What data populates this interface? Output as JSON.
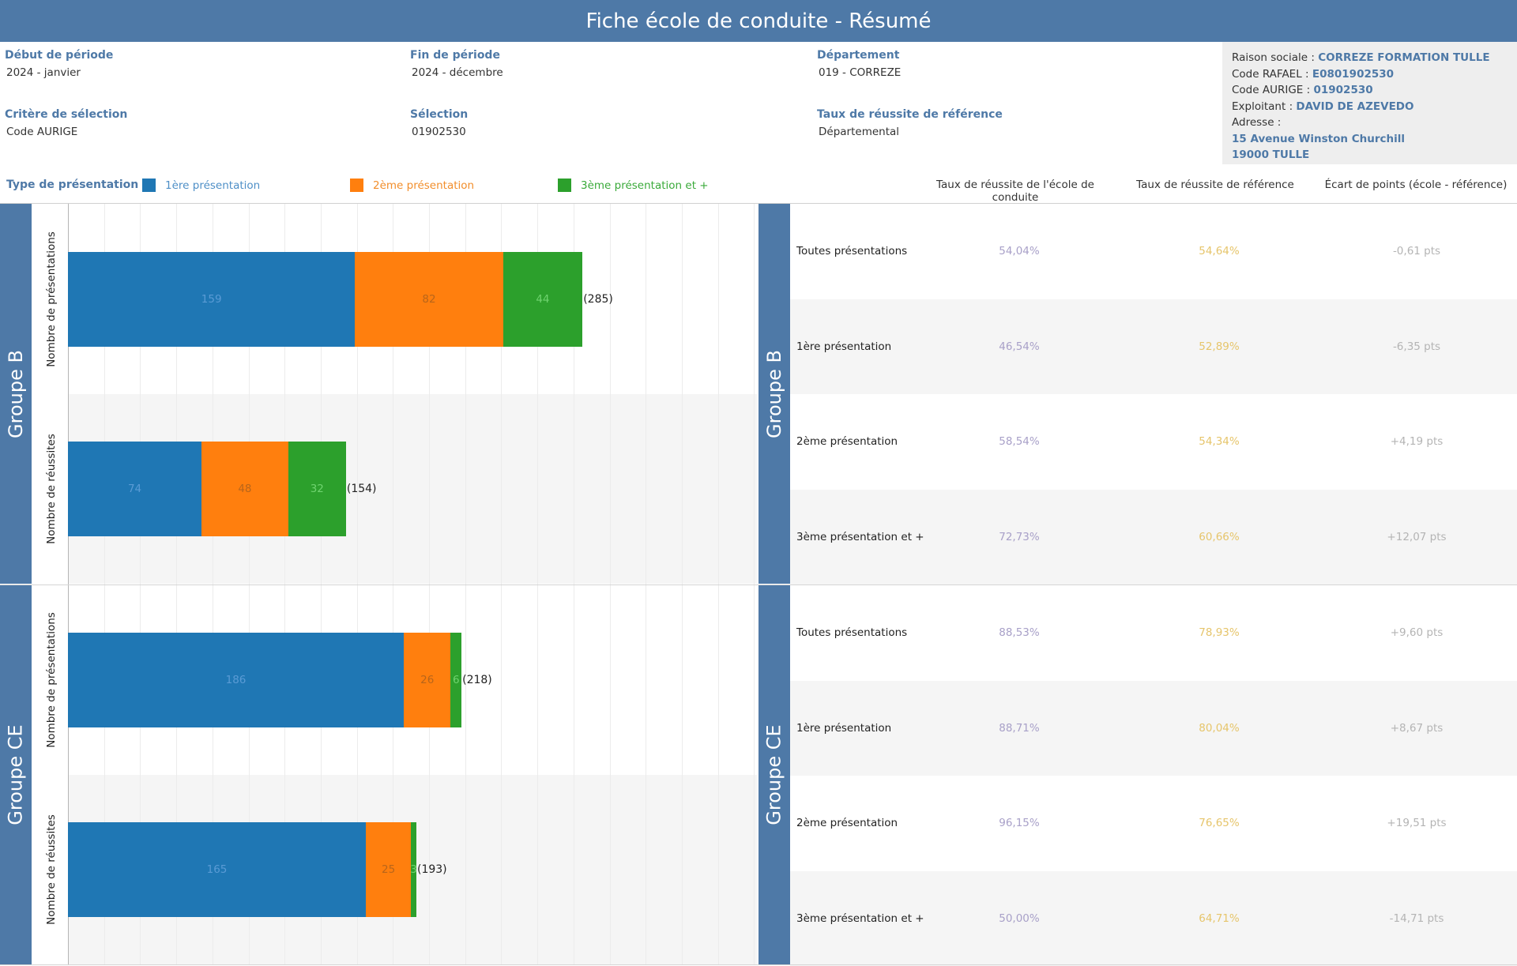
{
  "title": "Fiche école de conduite - Résumé",
  "filters": {
    "debut": {
      "label": "Début de période",
      "value": "2024 - janvier"
    },
    "fin": {
      "label": "Fin de période",
      "value": "2024 - décembre"
    },
    "departement": {
      "label": "Département",
      "value": "019 - CORREZE"
    },
    "critere": {
      "label": "Critère de sélection",
      "value": "Code AURIGE"
    },
    "selection": {
      "label": "Sélection",
      "value": "01902530"
    },
    "taux_ref": {
      "label": "Taux de réussite de référence",
      "value": "Départemental"
    }
  },
  "school": {
    "raison_label": "Raison sociale",
    "raison_value": "CORREZE FORMATION TULLE",
    "rafael_label": "Code RAFAEL",
    "rafael_value": "E0801902530",
    "aurige_label": "Code AURIGE",
    "aurige_value": "01902530",
    "exploitant_label": "Exploitant",
    "exploitant_value": "DAVID DE AZEVEDO",
    "adresse_label": "Adresse :",
    "adresse_line1": "15 Avenue Winston Churchill",
    "adresse_line2": "19000 TULLE",
    "sep": ":"
  },
  "legend": {
    "title": "Type de présentation",
    "items": [
      {
        "label": "1ère présentation",
        "color": "#1f77b4",
        "text_color": "#4e8fc7"
      },
      {
        "label": "2ème présentation",
        "color": "#ff7f0e",
        "text_color": "#f28e2b"
      },
      {
        "label": "3ème présentation et +",
        "color": "#2ca02c",
        "text_color": "#3aaa3a"
      }
    ]
  },
  "table_headers": {
    "school": "Taux de réussite de l'école de conduite",
    "reference": "Taux de réussite de référence",
    "gap": "Écart de points (école - référence)"
  },
  "row_labels": {
    "presentations": "Nombre de présentations",
    "reussites": "Nombre de réussites"
  },
  "groups": [
    {
      "name": "Groupe B",
      "bars": [
        {
          "measure": "presentations",
          "values": [
            159,
            82,
            44
          ],
          "total_label": "(285)"
        },
        {
          "measure": "reussites",
          "values": [
            74,
            48,
            32
          ],
          "total_label": "(154)"
        }
      ],
      "rows": [
        {
          "label": "Toutes présentations",
          "school": "54,04%",
          "reference": "54,64%",
          "gap": "-0,61 pts"
        },
        {
          "label": "1ère présentation",
          "school": "46,54%",
          "reference": "52,89%",
          "gap": "-6,35 pts"
        },
        {
          "label": "2ème présentation",
          "school": "58,54%",
          "reference": "54,34%",
          "gap": "+4,19 pts"
        },
        {
          "label": "3ème présentation et +",
          "school": "72,73%",
          "reference": "60,66%",
          "gap": "+12,07 pts"
        }
      ]
    },
    {
      "name": "Groupe CE",
      "bars": [
        {
          "measure": "presentations",
          "values": [
            186,
            26,
            6
          ],
          "total_label": "(218)"
        },
        {
          "measure": "reussites",
          "values": [
            165,
            25,
            3
          ],
          "total_label": "(193)"
        }
      ],
      "rows": [
        {
          "label": "Toutes présentations",
          "school": "88,53%",
          "reference": "78,93%",
          "gap": "+9,60 pts"
        },
        {
          "label": "1ère présentation",
          "school": "88,71%",
          "reference": "80,04%",
          "gap": "+8,67 pts"
        },
        {
          "label": "2ème présentation",
          "school": "96,15%",
          "reference": "76,65%",
          "gap": "+19,51 pts"
        },
        {
          "label": "3ème présentation et +",
          "school": "50,00%",
          "reference": "64,71%",
          "gap": "-14,71 pts"
        }
      ]
    }
  ],
  "chart_data": {
    "type": "bar",
    "orientation": "horizontal",
    "stacked": true,
    "categories": [
      "Groupe B - Nombre de présentations",
      "Groupe B - Nombre de réussites",
      "Groupe CE - Nombre de présentations",
      "Groupe CE - Nombre de réussites"
    ],
    "series": [
      {
        "name": "1ère présentation",
        "values": [
          159,
          74,
          186,
          165
        ]
      },
      {
        "name": "2ème présentation",
        "values": [
          82,
          48,
          26,
          25
        ]
      },
      {
        "name": "3ème présentation et +",
        "values": [
          44,
          32,
          6,
          3
        ]
      }
    ],
    "totals": [
      285,
      154,
      218,
      193
    ],
    "xlim": [
      0,
      311
    ],
    "grid": true,
    "legend_position": "top-left"
  }
}
